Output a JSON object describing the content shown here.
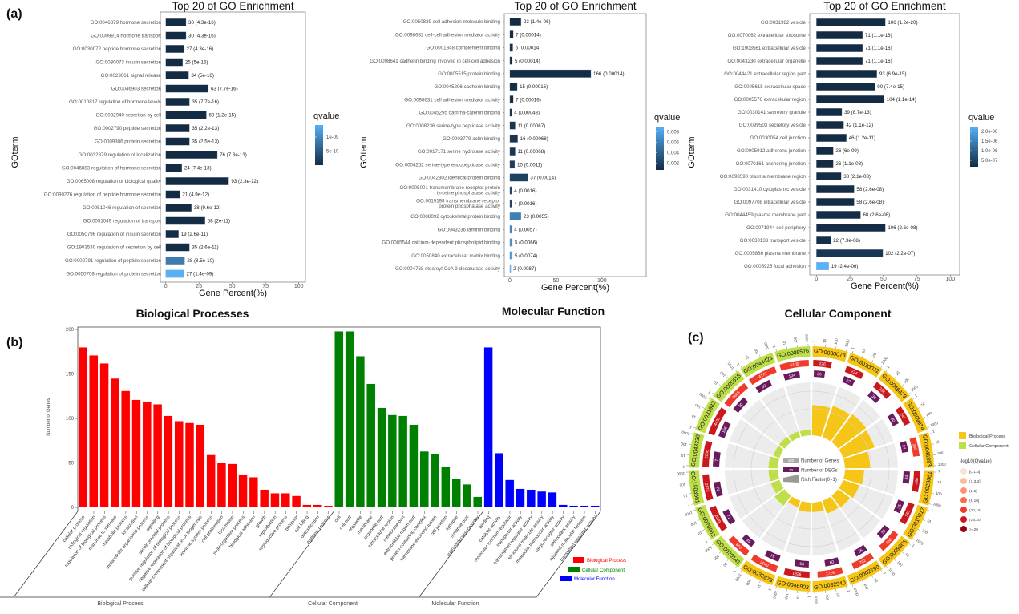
{
  "panel_labels": {
    "a": "(a)",
    "b": "(b)",
    "c": "(c)"
  },
  "chart_data": [
    {
      "type": "bar",
      "orientation": "horizontal",
      "title": "Top 20 of GO Enrichment",
      "xlabel": "Gene Percent(%)",
      "ylabel": "GOterm",
      "xlim": [
        -4,
        105
      ],
      "xticks": [
        "0",
        "25",
        "50",
        "75",
        "100"
      ],
      "legend": {
        "title": "qvalue",
        "ticks": [
          "1e-09",
          "5e-10"
        ]
      },
      "color_scale": [
        "#132B43",
        "#56B1F7"
      ],
      "items": [
        {
          "term": "GO:0046879 hormone secretion",
          "count": "30",
          "q": "4.3e-16",
          "percent": 15.3
        },
        {
          "term": "GO:0009914 hormone transport",
          "count": "30",
          "q": "4.3e-16",
          "percent": 15.3
        },
        {
          "term": "GO:0030072 peptide hormone secretion",
          "count": "27",
          "q": "4.3e-16",
          "percent": 13.8
        },
        {
          "term": "GO:0030073 insulin secretion",
          "count": "25",
          "q": "5e-16",
          "percent": 12.8
        },
        {
          "term": "GO:0023061 signal release",
          "count": "34",
          "q": "5e-16",
          "percent": 17.3
        },
        {
          "term": "GO:0046903 secretion",
          "count": "63",
          "q": "7.7e-16",
          "percent": 32.1
        },
        {
          "term": "GO:0010817 regulation of hormone levels",
          "count": "35",
          "q": "7.7e-16",
          "percent": 17.9
        },
        {
          "term": "GO:0032940 secretion by cell",
          "count": "60",
          "q": "1.2e-15",
          "percent": 30.6
        },
        {
          "term": "GO:0002790 peptide secretion",
          "count": "35",
          "q": "2.2e-13",
          "percent": 17.9
        },
        {
          "term": "GO:0009306 protein secretion",
          "count": "35",
          "q": "2.5e-13",
          "percent": 17.9
        },
        {
          "term": "GO:0032879 regulation of localization",
          "count": "76",
          "q": "7.3e-13",
          "percent": 38.8
        },
        {
          "term": "GO:0046883 regulation of hormone secretion",
          "count": "24",
          "q": "7.4e-13",
          "percent": 12.2
        },
        {
          "term": "GO:0065008 regulation of biological quality",
          "count": "93",
          "q": "2.3e-12",
          "percent": 47.4
        },
        {
          "term": "GO:0090276 regulation of peptide hormone secretion",
          "count": "21",
          "q": "4.9e-12",
          "percent": 10.7
        },
        {
          "term": "GO:0051046 regulation of secretion",
          "count": "38",
          "q": "9.6e-12",
          "percent": 19.4
        },
        {
          "term": "GO:0051049 regulation of transport",
          "count": "58",
          "q": "2e-11",
          "percent": 29.6
        },
        {
          "term": "GO:0050796 regulation of insulin secretion",
          "count": "19",
          "q": "2.6e-11",
          "percent": 9.7
        },
        {
          "term": "GO:1903530 regulation of secretion by cell",
          "count": "35",
          "q": "2.6e-11",
          "percent": 17.9
        },
        {
          "term": "GO:0002791 regulation of peptide secretion",
          "count": "28",
          "q": "8.5e-10",
          "percent": 14.3
        },
        {
          "term": "GO:0050708 regulation of protein secretion",
          "count": "27",
          "q": "1.4e-09",
          "percent": 13.8
        }
      ]
    },
    {
      "type": "bar",
      "orientation": "horizontal",
      "title": "Top 20 of GO Enrichment",
      "xlabel": "Gene Percent(%)",
      "ylabel": "GOterm",
      "xlim": [
        -6,
        148
      ],
      "xticks": [
        "0",
        "50",
        "100"
      ],
      "legend": {
        "title": "qvalue",
        "ticks": [
          "0.008",
          "0.006",
          "0.004",
          "0.002"
        ]
      },
      "color_scale": [
        "#132B43",
        "#56B1F7"
      ],
      "items": [
        {
          "term": "GO:0050839 cell adhesion molecule binding",
          "count": "23",
          "q": "1.4e-06",
          "percent": 12.2
        },
        {
          "term": "GO:0098632 cell-cell adhesion mediator activity",
          "count": "7",
          "q": "0.00014",
          "percent": 3.7
        },
        {
          "term": "GO:0001848 complement binding",
          "count": "6",
          "q": "0.00014",
          "percent": 3.2
        },
        {
          "term": "GO:0098641 cadherin binding involved in cell-cell adhesion",
          "count": "5",
          "q": "0.00014",
          "percent": 2.7
        },
        {
          "term": "GO:0005515 protein binding",
          "count": "166",
          "q": "0.00014",
          "percent": 88
        },
        {
          "term": "GO:0045296 cadherin binding",
          "count": "15",
          "q": "0.00016",
          "percent": 8
        },
        {
          "term": "GO:0098631 cell adhesion mediator activity",
          "count": "7",
          "q": "0.00016",
          "percent": 3.7
        },
        {
          "term": "GO:0045295 gamma-catenin binding",
          "count": "4",
          "q": "0.00048",
          "percent": 2.1
        },
        {
          "term": "GO:0008236 serine-type peptidase activity",
          "count": "11",
          "q": "0.00067",
          "percent": 5.8
        },
        {
          "term": "GO:0003779 actin binding",
          "count": "16",
          "q": "0.00068",
          "percent": 8.5
        },
        {
          "term": "GO:0017171 serine hydrolase activity",
          "count": "11",
          "q": "0.00068",
          "percent": 5.8
        },
        {
          "term": "GO:0004252 serine-type endopeptidase activity",
          "count": "10",
          "q": "0.0011",
          "percent": 5.3
        },
        {
          "term": "GO:0042802 identical protein binding",
          "count": "37",
          "q": "0.0014",
          "percent": 19.6
        },
        {
          "term": [
            "GO:0005001 transmembrane receptor protein",
            "tyrosine phosphatase activity"
          ],
          "count": "4",
          "q": "0.0016",
          "percent": 2.1
        },
        {
          "term": [
            "GO:0019198 transmembrane receptor",
            "protein phosphatase activity"
          ],
          "count": "4",
          "q": "0.0016",
          "percent": 2.1
        },
        {
          "term": "GO:0008092 cytoskeletal protein binding",
          "count": "23",
          "q": "0.0055",
          "percent": 12.2
        },
        {
          "term": "GO:0043236 laminin binding",
          "count": "4",
          "q": "0.0057",
          "percent": 2.1
        },
        {
          "term": "GO:0005544 calcium-dependent phospholipid binding",
          "count": "5",
          "q": "0.0066",
          "percent": 2.7
        },
        {
          "term": "GO:0050840 extracellular matrix binding",
          "count": "5",
          "q": "0.0074",
          "percent": 2.7
        },
        {
          "term": "GO:0004768 stearoyl-CoA 9-desaturase activity",
          "count": "2",
          "q": "0.0087",
          "percent": 1.1
        }
      ]
    },
    {
      "type": "bar",
      "orientation": "horizontal",
      "title": "Top 20 of GO Enrichment",
      "xlabel": "Gene Percent(%)",
      "ylabel": "GOterm",
      "xlim": [
        -5,
        107
      ],
      "xticks": [
        "0",
        "25",
        "50",
        "75",
        "100"
      ],
      "legend": {
        "title": "qvalue",
        "ticks": [
          "2.0e-06",
          "1.5e-06",
          "1.0e-06",
          "5.0e-07"
        ]
      },
      "color_scale": [
        "#132B43",
        "#56B1F7"
      ],
      "items": [
        {
          "term": "GO:0031982 vesicle",
          "count": "106",
          "q": "1.2e-20",
          "percent": 51.5
        },
        {
          "term": "GO:0070062 extracellular exosome",
          "count": "71",
          "q": "1.1e-16",
          "percent": 34.5
        },
        {
          "term": "GO:1903561 extracellular vesicle",
          "count": "71",
          "q": "1.1e-16",
          "percent": 34.5
        },
        {
          "term": "GO:0043230 extracellular organelle",
          "count": "71",
          "q": "1.1e-16",
          "percent": 34.5
        },
        {
          "term": "GO:0044421 extracellular region part",
          "count": "93",
          "q": "6.9e-15",
          "percent": 45.2
        },
        {
          "term": "GO:0005615 extracellular space",
          "count": "90",
          "q": "7.4e-15",
          "percent": 43.7
        },
        {
          "term": "GO:0005576 extracellular region",
          "count": "104",
          "q": "1.1e-14",
          "percent": 50.5
        },
        {
          "term": "GO:0030141 secretory granule",
          "count": "39",
          "q": "8.7e-13",
          "percent": 19
        },
        {
          "term": "GO:0099503 secretory vesicle",
          "count": "42",
          "q": "1.1e-12",
          "percent": 20.4
        },
        {
          "term": "GO:0030054 cell junction",
          "count": "46",
          "q": "1.2e-11",
          "percent": 22.4
        },
        {
          "term": "GO:0005912 adherens junction",
          "count": "26",
          "q": "6e-09",
          "percent": 12.6
        },
        {
          "term": "GO:0070161 anchoring junction",
          "count": "26",
          "q": "1.1e-08",
          "percent": 12.6
        },
        {
          "term": "GO:0098590 plasma membrane region",
          "count": "38",
          "q": "2.1e-08",
          "percent": 18.5
        },
        {
          "term": "GO:0031410 cytoplasmic vesicle",
          "count": "58",
          "q": "2.6e-08",
          "percent": 28.2
        },
        {
          "term": "GO:0097708 intracellular vesicle",
          "count": "58",
          "q": "2.6e-08",
          "percent": 28.2
        },
        {
          "term": "GO:0044459 plasma membrane part",
          "count": "68",
          "q": "2.6e-08",
          "percent": 33
        },
        {
          "term": "GO:0071944 cell periphery",
          "count": "106",
          "q": "2.6e-08",
          "percent": 51.5
        },
        {
          "term": "GO:0030133 transport vesicle",
          "count": "22",
          "q": "7.3e-08",
          "percent": 10.7
        },
        {
          "term": "GO:0005886 plasma membrane",
          "count": "102",
          "q": "2.2e-07",
          "percent": 49.6
        },
        {
          "term": "GO:0005925 focal adhesion",
          "count": "19",
          "q": "2.4e-06",
          "percent": 9.2
        }
      ]
    },
    {
      "type": "bar",
      "titles": [
        "Biological Processes",
        "Molecular Function"
      ],
      "ylabel": "Number of Genes",
      "ylim": [
        0,
        200
      ],
      "yticks": [
        "0",
        "50",
        "100",
        "150",
        "200"
      ],
      "groups": [
        {
          "name": "Biological Process",
          "color": "#ff0000",
          "categories": [
            "cellular process",
            "biological regulation",
            "regulation of biological process",
            "response to stimulus",
            "metabolic process",
            "localization",
            "multicellular organismal process",
            "signaling",
            "developmental process",
            "positive regulation of biological process",
            "negative regulation of biological process",
            "cellular component organization or biogenesis",
            "immune system process",
            "cell proliferation",
            "locomotion",
            "multi-organism process",
            "biological adhesion",
            "growth",
            "reproduction",
            "reproductive process",
            "behavior",
            "cell killing",
            "detoxification",
            "rhythmic process"
          ],
          "values": [
            180,
            171,
            162,
            145,
            131,
            121,
            119,
            116,
            103,
            97,
            95,
            93,
            59,
            50,
            49,
            37,
            34,
            20,
            16,
            16,
            13,
            3,
            3,
            2
          ]
        },
        {
          "name": "Cellular Component",
          "color": "#008000",
          "categories": [
            "cell",
            "cell part",
            "organelle",
            "membrane",
            "organelle part",
            "extracellular region",
            "membrane part",
            "extracellular region part",
            "protein-containing complex",
            "membrane-enclosed lumen",
            "cell junction",
            "synapse",
            "synapse part",
            "supramolecular complex"
          ],
          "values": [
            198,
            198,
            170,
            139,
            112,
            104,
            103,
            93,
            63,
            60,
            46,
            32,
            26,
            12
          ]
        },
        {
          "name": "Molecular Function",
          "color": "#0000ff",
          "categories": [
            "binding",
            "catalytic activity",
            "molecular function regulator",
            "transporter activity",
            "transcription regulator activity",
            "structural molecule activity",
            "molecular transducer activity",
            "cargo receptor activity",
            "antioxidant activity",
            "hijacked molecular function",
            "translation regulator activity"
          ],
          "values": [
            180,
            61,
            31,
            21,
            20,
            18,
            17,
            3,
            2,
            2,
            2
          ]
        }
      ]
    },
    {
      "type": "circular",
      "title": "Cellular Component",
      "categories": [
        {
          "name": "Biological Process",
          "color": "#f5c518"
        },
        {
          "name": "Cellular Component",
          "color": "#bedf4a"
        }
      ],
      "qvalue_legend": {
        "title": "-log10(Qvalue)",
        "levels": [
          {
            "label": "[0,1.3]",
            "color": "#fde0d2"
          },
          {
            "label": "(1.3,2]",
            "color": "#fcbba1"
          },
          {
            "label": "(2,5]",
            "color": "#fc9272"
          },
          {
            "label": "(5,10]",
            "color": "#fb6a4a"
          },
          {
            "label": "(10,15]",
            "color": "#ef3b2c"
          },
          {
            "label": "(15,20]",
            "color": "#cb181d"
          },
          {
            "label": ">=20",
            "color": "#99000d"
          }
        ]
      },
      "inner_legend": {
        "genes_example": "100",
        "genes_label": "Number of Genes",
        "degs_example": "10",
        "degs_label": "Number of DEGs",
        "rich_label": "Rich Factor(0~1)"
      },
      "degs_color": "#6a1b5e",
      "tick_labels": [
        "1",
        "10",
        "100",
        "1000"
      ],
      "sectors": [
        {
          "id": "GO:0030073",
          "category": 0,
          "genes": "226",
          "degs": "25",
          "q_level": 5
        },
        {
          "id": "GO:0030072",
          "category": 0,
          "genes": "224",
          "degs": "27",
          "q_level": 5
        },
        {
          "id": "GO:0046879",
          "category": 0,
          "genes": "236",
          "degs": "30",
          "q_level": 5
        },
        {
          "id": "GO:0009914",
          "category": 0,
          "genes": "247",
          "degs": "30",
          "q_level": 5
        },
        {
          "id": "GO:0046883",
          "category": 0,
          "genes": "260",
          "degs": "24",
          "q_level": 4
        },
        {
          "id": "GO:0023061",
          "category": 0,
          "genes": "486",
          "degs": "34",
          "q_level": 5
        },
        {
          "id": "GO:0010817",
          "category": 0,
          "genes": "563",
          "degs": "35",
          "q_level": 5
        },
        {
          "id": "GO:0009306",
          "category": 0,
          "genes": "656",
          "degs": "35",
          "q_level": 4
        },
        {
          "id": "GO:0002790",
          "category": 0,
          "genes": "702",
          "degs": "35",
          "q_level": 4
        },
        {
          "id": "GO:0032940",
          "category": 0,
          "genes": "1729",
          "degs": "60",
          "q_level": 4
        },
        {
          "id": "GO:0046903",
          "category": 0,
          "genes": "1826",
          "degs": "63",
          "q_level": 5
        },
        {
          "id": "GO:0032879",
          "category": 0,
          "genes": "3040",
          "degs": "76",
          "q_level": 4
        },
        {
          "id": "GO:0030141",
          "category": 1,
          "genes": "866",
          "degs": "39",
          "q_level": 4
        },
        {
          "id": "GO:0070062",
          "category": 1,
          "genes": "2099",
          "degs": "71",
          "q_level": 5
        },
        {
          "id": "GO:1903561",
          "category": 1,
          "genes": "2123",
          "degs": "71",
          "q_level": 5
        },
        {
          "id": "GO:0043230",
          "category": 1,
          "genes": "2106",
          "degs": "71",
          "q_level": 5
        },
        {
          "id": "GO:0031982",
          "category": 1,
          "genes": "4423",
          "degs": "106",
          "q_level": 5
        },
        {
          "id": "GO:0005615",
          "category": 1,
          "genes": "3668",
          "degs": "90",
          "q_level": 4
        },
        {
          "id": "GO:0044421",
          "category": 1,
          "genes": "4172",
          "degs": "93",
          "q_level": 4
        },
        {
          "id": "GO:0005576",
          "category": 1,
          "genes": "5105",
          "degs": "104",
          "q_level": 4
        }
      ]
    }
  ]
}
